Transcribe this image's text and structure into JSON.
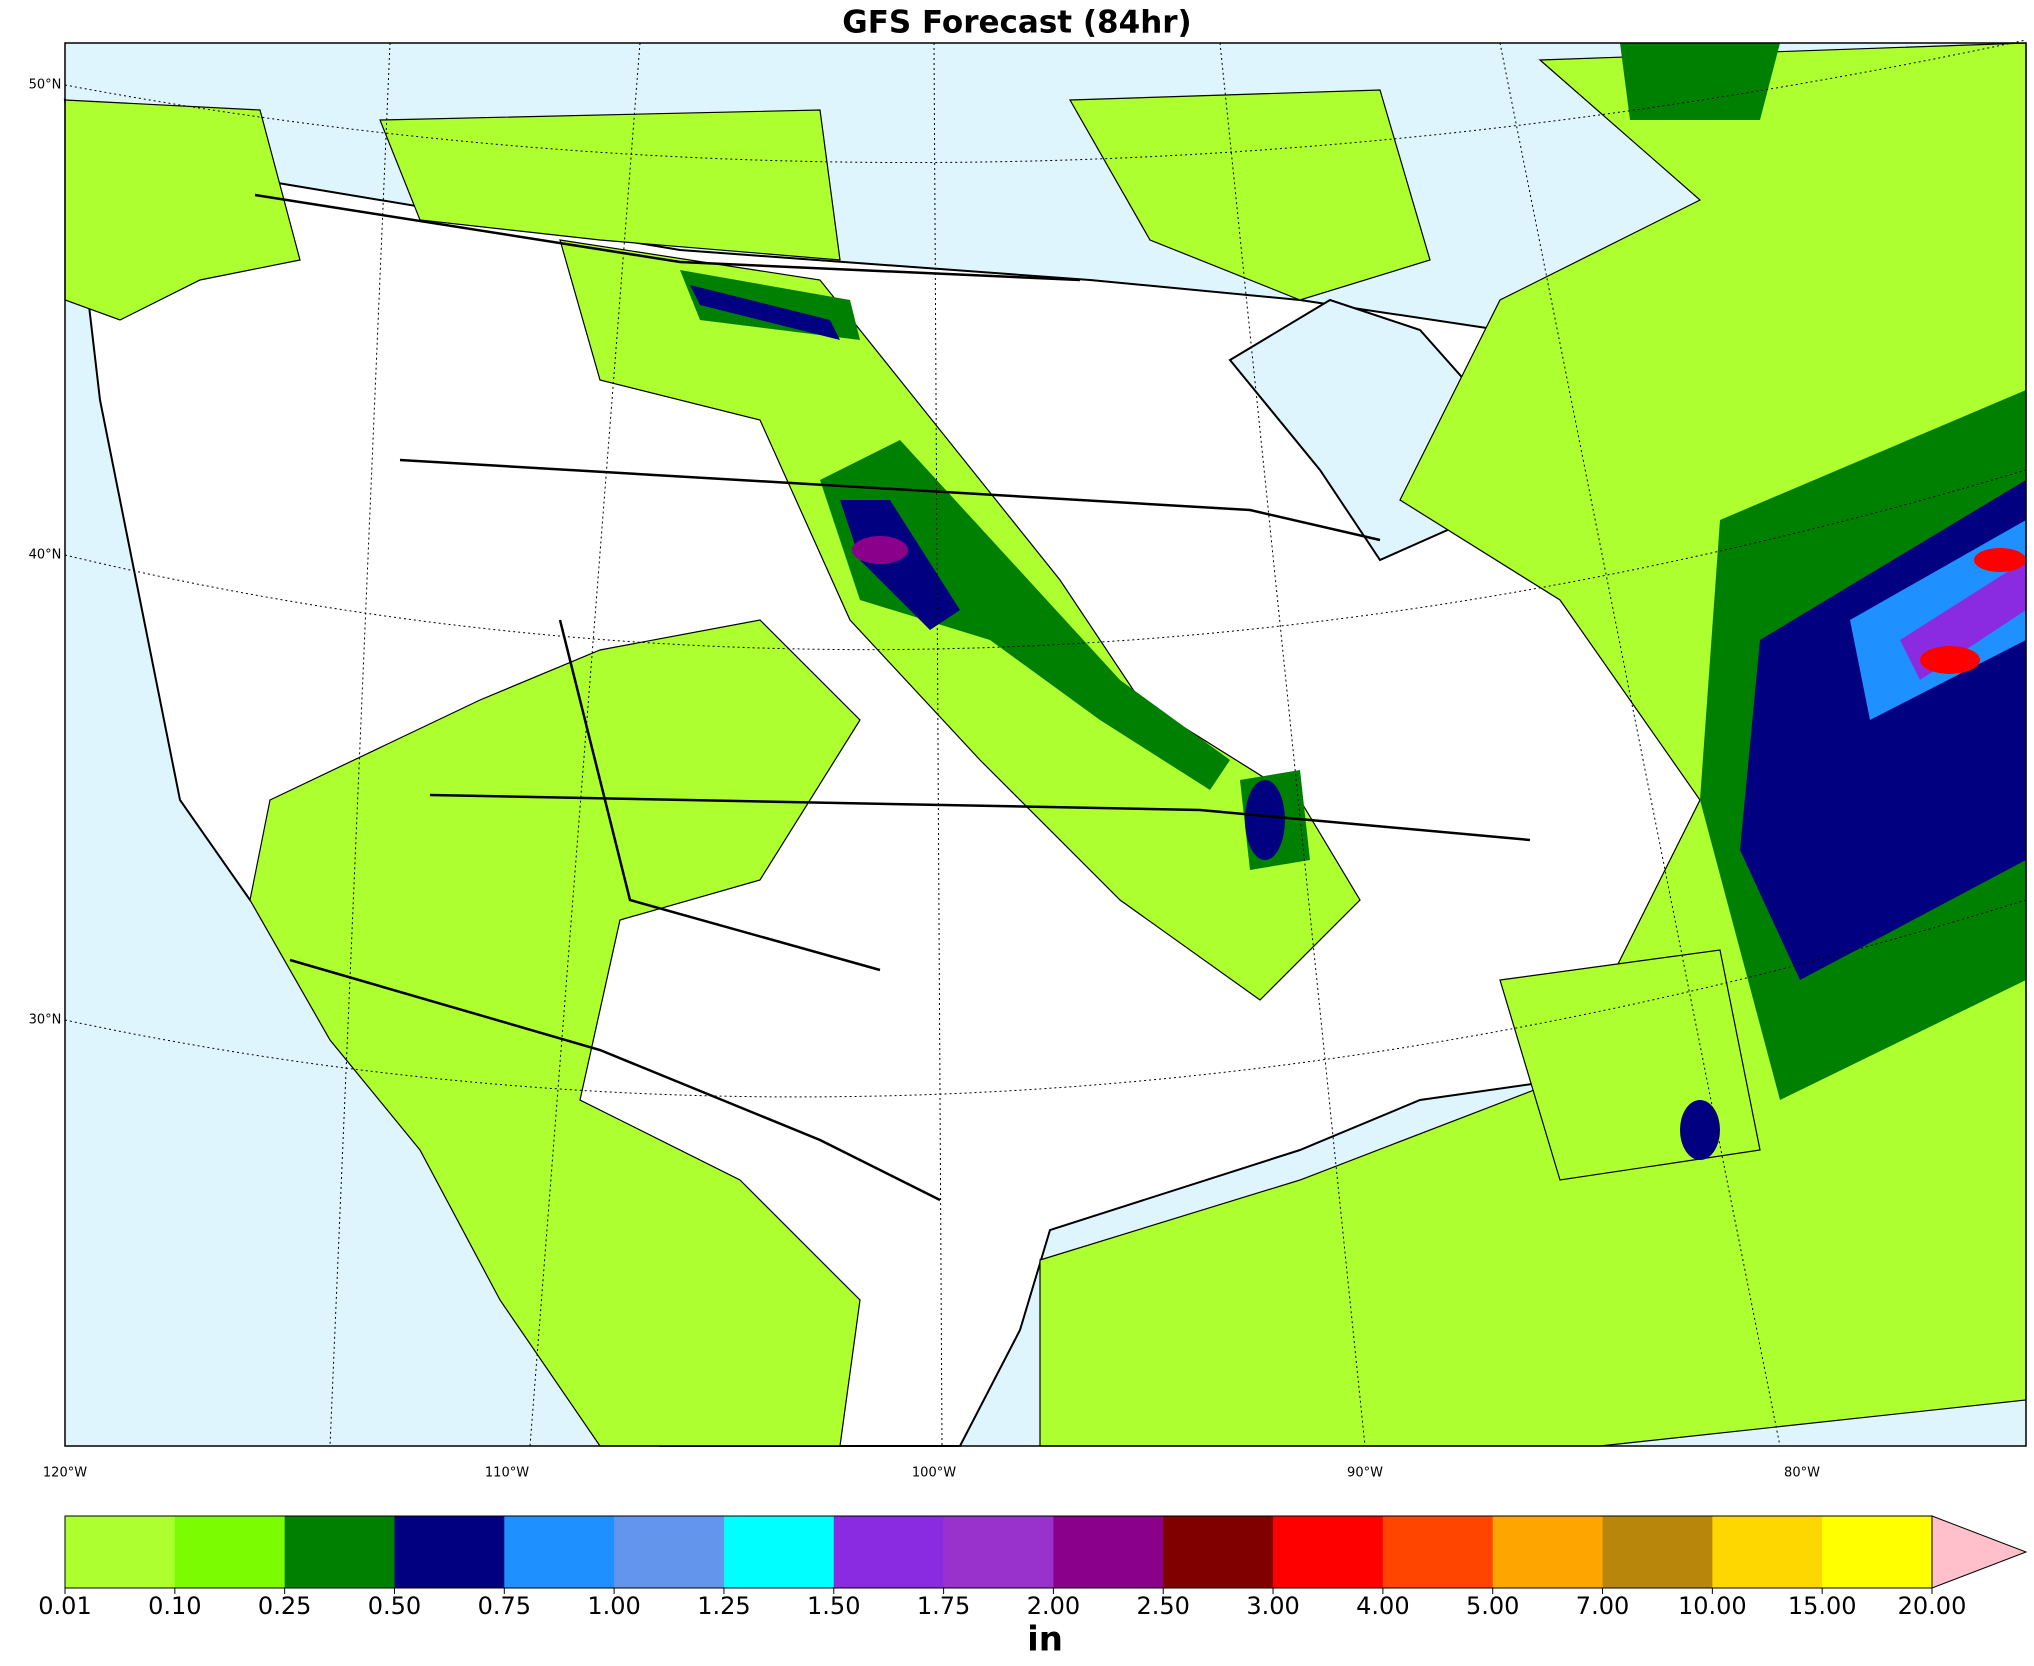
{
  "title": "GFS Forecast (84hr)",
  "lat_labels": [
    "50°N",
    "40°N",
    "30°N"
  ],
  "lon_labels": [
    "120°W",
    "110°W",
    "100°W",
    "90°W",
    "80°W"
  ],
  "colorbar": {
    "levels": [
      {
        "value": 0.01,
        "label": "0.01"
      },
      {
        "value": 0.1,
        "label": "0.10"
      },
      {
        "value": 0.25,
        "label": "0.25"
      },
      {
        "value": 0.5,
        "label": "0.50"
      },
      {
        "value": 0.75,
        "label": "0.75"
      },
      {
        "value": 1,
        "label": "1.00"
      },
      {
        "value": 1.25,
        "label": "1.25"
      },
      {
        "value": 1.5,
        "label": "1.50"
      },
      {
        "value": 1.75,
        "label": "1.75"
      },
      {
        "value": 2,
        "label": "2.00"
      },
      {
        "value": 2.5,
        "label": "2.50"
      },
      {
        "value": 3,
        "label": "3.00"
      },
      {
        "value": 4,
        "label": "4.00"
      },
      {
        "value": 5,
        "label": "5.00"
      },
      {
        "value": 7,
        "label": "7.00"
      },
      {
        "value": 10,
        "label": "10.00"
      },
      {
        "value": 15,
        "label": "15.00"
      },
      {
        "value": 20,
        "label": "20.00"
      }
    ],
    "colors": [
      "#adff2f",
      "#7cfc00",
      "#008000",
      "#000080",
      "#1e90ff",
      "#6495ed",
      "#00ffff",
      "#8a2be2",
      "#9932cc",
      "#8b008b",
      "#800000",
      "#ff0000",
      "#ff4500",
      "#ffa500",
      "#b8860b",
      "#ffd700",
      "#ffff00"
    ],
    "extend_color": "#ffc0cb",
    "label": "in"
  }
}
